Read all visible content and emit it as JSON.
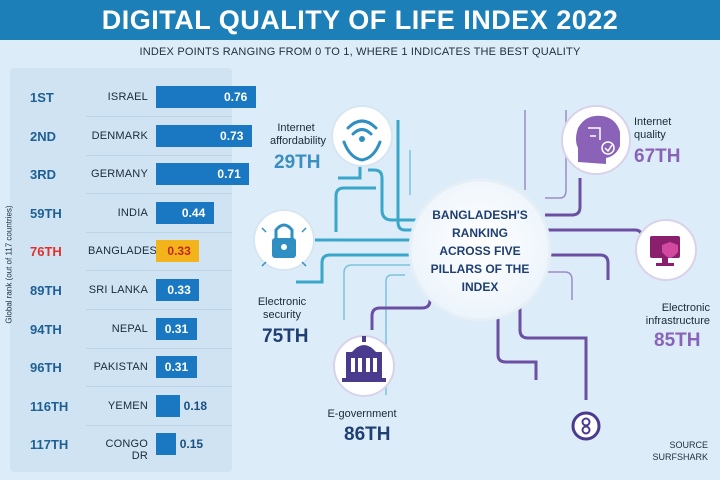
{
  "title": "DIGITAL QUALITY OF LIFE INDEX 2022",
  "subtitle": "INDEX POINTS RANGING FROM 0 TO 1, WHERE 1 INDICATES THE BEST QUALITY",
  "colors": {
    "bar": "#1a78c2",
    "highlight": "#f3b31b",
    "title_bg": "#1d7fb8",
    "purple": "#6b4fa3",
    "teal": "#2b9bc2"
  },
  "chart_data": {
    "type": "bar",
    "orientation": "horizontal",
    "ylabel": "Global rank (out of 117 countries)",
    "xlim": [
      0,
      1
    ],
    "highlight": "BANGLADESH",
    "rows": [
      {
        "rank": "1ST",
        "country": "ISRAEL",
        "value": 0.76,
        "label": "0.76"
      },
      {
        "rank": "2ND",
        "country": "DENMARK",
        "value": 0.73,
        "label": "0.73"
      },
      {
        "rank": "3RD",
        "country": "GERMANY",
        "value": 0.71,
        "label": "0.71"
      },
      {
        "rank": "59TH",
        "country": "INDIA",
        "value": 0.44,
        "label": "0.44"
      },
      {
        "rank": "76TH",
        "country": "BANGLADESH",
        "value": 0.33,
        "label": "0.33"
      },
      {
        "rank": "89TH",
        "country": "SRI LANKA",
        "value": 0.33,
        "label": "0.33"
      },
      {
        "rank": "94TH",
        "country": "NEPAL",
        "value": 0.31,
        "label": "0.31"
      },
      {
        "rank": "96TH",
        "country": "PAKISTAN",
        "value": 0.31,
        "label": "0.31"
      },
      {
        "rank": "116TH",
        "country": "YEMEN",
        "value": 0.18,
        "label": "0.18"
      },
      {
        "rank": "117TH",
        "country": "CONGO DR",
        "value": 0.15,
        "label": "0.15"
      }
    ]
  },
  "hub": {
    "text": "BANGLADESH'S RANKING ACROSS FIVE PILLARS OF THE INDEX"
  },
  "pillars": [
    {
      "name": "Internet affordability",
      "rank": "29TH",
      "icon": "wifi-hands-icon"
    },
    {
      "name": "Internet quality",
      "rank": "67TH",
      "icon": "circuit-head-icon"
    },
    {
      "name": "Electronic security",
      "rank": "75TH",
      "icon": "padlock-icon"
    },
    {
      "name": "Electronic infrastructure",
      "rank": "85TH",
      "icon": "monitor-shield-icon"
    },
    {
      "name": "E-government",
      "rank": "86TH",
      "icon": "government-building-icon"
    }
  ],
  "source": {
    "line1": "SOURCE",
    "line2": "SURFSHARK"
  }
}
